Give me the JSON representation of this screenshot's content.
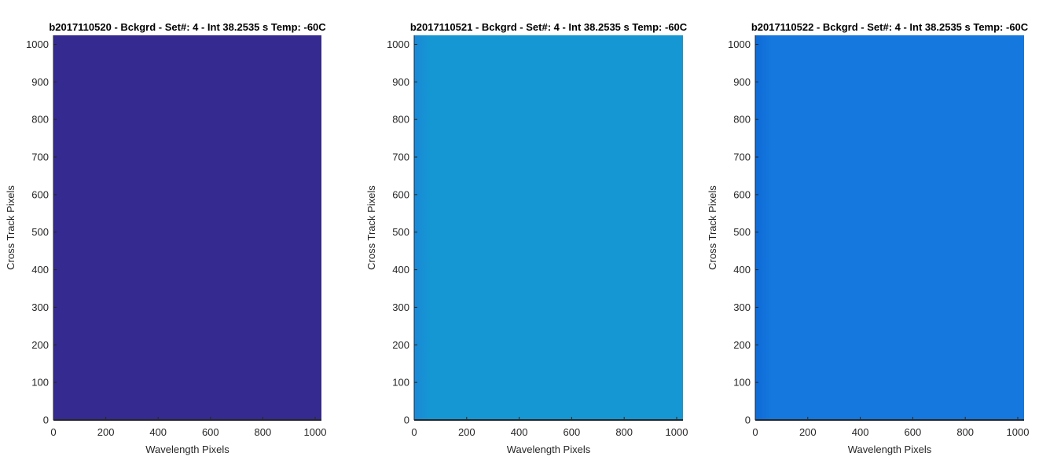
{
  "chart_data": [
    {
      "type": "heatmap",
      "title": "b2017110520 - Bckgrd - Set#: 4 - Int 38.2535 s Temp: -60C",
      "xlabel": "Wavelength Pixels",
      "ylabel": "Cross Track Pixels",
      "xlim": [
        0,
        1024
      ],
      "ylim": [
        0,
        1024
      ],
      "xticks": [
        0,
        200,
        400,
        600,
        800,
        1000
      ],
      "yticks": [
        0,
        100,
        200,
        300,
        400,
        500,
        600,
        700,
        800,
        900,
        1000
      ],
      "colors": {
        "fill": "#352a8f",
        "edge_shade": "#352a8f"
      }
    },
    {
      "type": "heatmap",
      "title": "b2017110521 - Bckgrd - Set#: 4 - Int 38.2535 s Temp: -60C",
      "xlabel": "Wavelength Pixels",
      "ylabel": "Cross Track Pixels",
      "xlim": [
        0,
        1024
      ],
      "ylim": [
        0,
        1024
      ],
      "xticks": [
        0,
        200,
        400,
        600,
        800,
        1000
      ],
      "yticks": [
        0,
        100,
        200,
        300,
        400,
        500,
        600,
        700,
        800,
        900,
        1000
      ],
      "colors": {
        "fill": "#1497d3",
        "edge_shade": "#1c88d6"
      }
    },
    {
      "type": "heatmap",
      "title": "b2017110522 - Bckgrd - Set#: 4 - Int 38.2535 s Temp: -60C",
      "xlabel": "Wavelength Pixels",
      "ylabel": "Cross Track Pixels",
      "xlim": [
        0,
        1024
      ],
      "ylim": [
        0,
        1024
      ],
      "xticks": [
        0,
        200,
        400,
        600,
        800,
        1000
      ],
      "yticks": [
        0,
        100,
        200,
        300,
        400,
        500,
        600,
        700,
        800,
        900,
        1000
      ],
      "colors": {
        "fill": "#1478de",
        "edge_shade": "#0f6ad6"
      }
    }
  ]
}
